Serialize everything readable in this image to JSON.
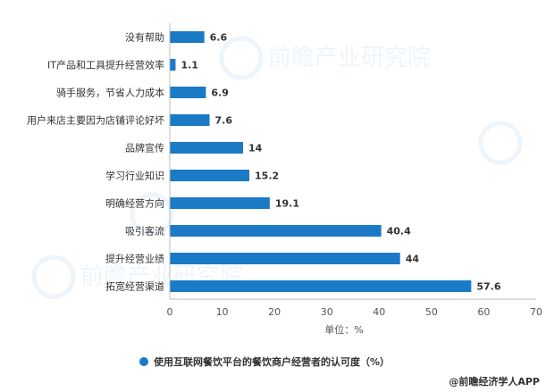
{
  "chart_data": {
    "type": "bar",
    "orientation": "horizontal",
    "categories": [
      "没有帮助",
      "IT产品和工具提升经营效率",
      "骑手服务，节省人力成本",
      "用户来店主要因为店铺评论好坏",
      "品牌宣传",
      "学习行业知识",
      "明确经营方向",
      "吸引客流",
      "提升经营业绩",
      "拓宽经营渠道"
    ],
    "values": [
      6.6,
      1.1,
      6.9,
      7.6,
      14,
      15.2,
      19.1,
      40.4,
      44,
      57.6
    ],
    "value_labels": [
      "6.6",
      "1.1",
      "6.9",
      "7.6",
      "14",
      "15.2",
      "19.1",
      "40.4",
      "44",
      "57.6"
    ],
    "xlim": [
      0,
      70
    ],
    "x_ticks": [
      "0",
      "10",
      "20",
      "30",
      "40",
      "50",
      "60",
      "70"
    ],
    "xlabel": "单位：%",
    "grid": false,
    "legend": {
      "position": "bottom",
      "entries": [
        "使用互联网餐饮平台的餐饮商户经营者的认可度（%）"
      ]
    },
    "colors": {
      "bar": "#1a7ac6",
      "axis": "#bbbbbb"
    }
  },
  "source": "@前瞻经济学人APP",
  "watermark": "前瞻产业研究院"
}
